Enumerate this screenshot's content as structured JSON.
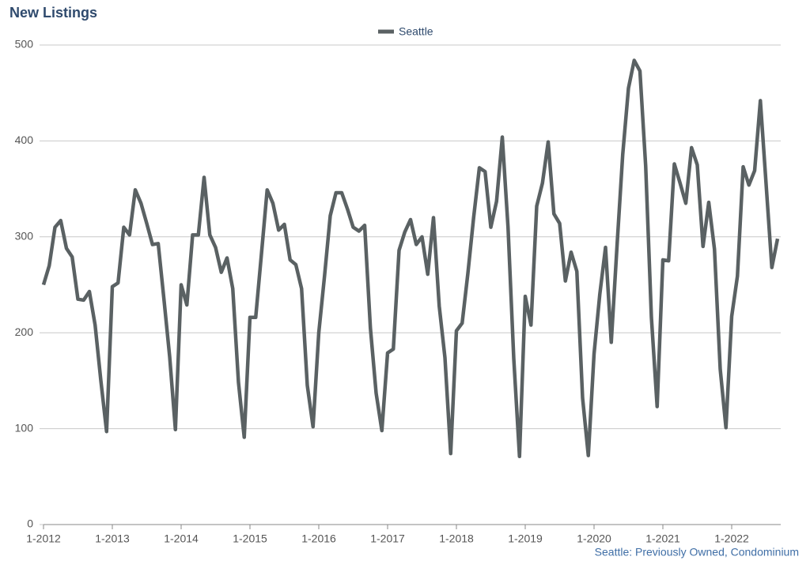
{
  "chart_data": {
    "type": "line",
    "title": "New Listings",
    "footnote": "Seattle: Previously Owned, Condominium",
    "categories": [
      "1-2012",
      null,
      null,
      null,
      null,
      null,
      null,
      null,
      null,
      null,
      null,
      null,
      "1-2013",
      null,
      null,
      null,
      null,
      null,
      null,
      null,
      null,
      null,
      null,
      null,
      "1-2014",
      null,
      null,
      null,
      null,
      null,
      null,
      null,
      null,
      null,
      null,
      null,
      "1-2015",
      null,
      null,
      null,
      null,
      null,
      null,
      null,
      null,
      null,
      null,
      null,
      "1-2016",
      null,
      null,
      null,
      null,
      null,
      null,
      null,
      null,
      null,
      null,
      null,
      "1-2017",
      null,
      null,
      null,
      null,
      null,
      null,
      null,
      null,
      null,
      null,
      null,
      "1-2018",
      null,
      null,
      null,
      null,
      null,
      null,
      null,
      null,
      null,
      null,
      null,
      "1-2019",
      null,
      null,
      null,
      null,
      null,
      null,
      null,
      null,
      null,
      null,
      null,
      "1-2020",
      null,
      null,
      null,
      null,
      null,
      null,
      null,
      null,
      null,
      null,
      null,
      "1-2021",
      null,
      null,
      null,
      null,
      null,
      null,
      null,
      null,
      null,
      null,
      null,
      "1-2022",
      null,
      null,
      null,
      null,
      null,
      null,
      null,
      null
    ],
    "series": [
      {
        "name": "Seattle",
        "color": "#5a6163",
        "values": [
          250,
          270,
          310,
          317,
          288,
          279,
          235,
          234,
          243,
          208,
          150,
          97,
          248,
          252,
          310,
          302,
          349,
          335,
          314,
          292,
          293,
          235,
          175,
          99,
          250,
          229,
          302,
          302,
          362,
          302,
          289,
          263,
          278,
          246,
          148,
          91,
          216,
          216,
          282,
          349,
          335,
          307,
          313,
          276,
          271,
          246,
          145,
          102,
          200,
          259,
          322,
          346,
          346,
          329,
          310,
          306,
          312,
          205,
          137,
          98,
          179,
          183,
          286,
          305,
          318,
          292,
          300,
          261,
          320,
          228,
          174,
          74,
          202,
          210,
          262,
          320,
          372,
          368,
          310,
          337,
          404,
          310,
          173,
          71,
          238,
          208,
          332,
          356,
          399,
          324,
          314,
          254,
          284,
          264,
          132,
          72,
          178,
          240,
          289,
          190,
          290,
          386,
          455,
          484,
          473,
          374,
          216,
          123,
          276,
          275,
          376,
          356,
          335,
          393,
          375,
          290,
          336,
          287,
          162,
          101,
          217,
          259,
          373,
          354,
          369,
          442,
          355,
          268,
          298
        ]
      }
    ],
    "ylim": [
      0,
      500
    ],
    "yticks": [
      0,
      100,
      200,
      300,
      400,
      500
    ],
    "grid": true,
    "legend": "top"
  }
}
